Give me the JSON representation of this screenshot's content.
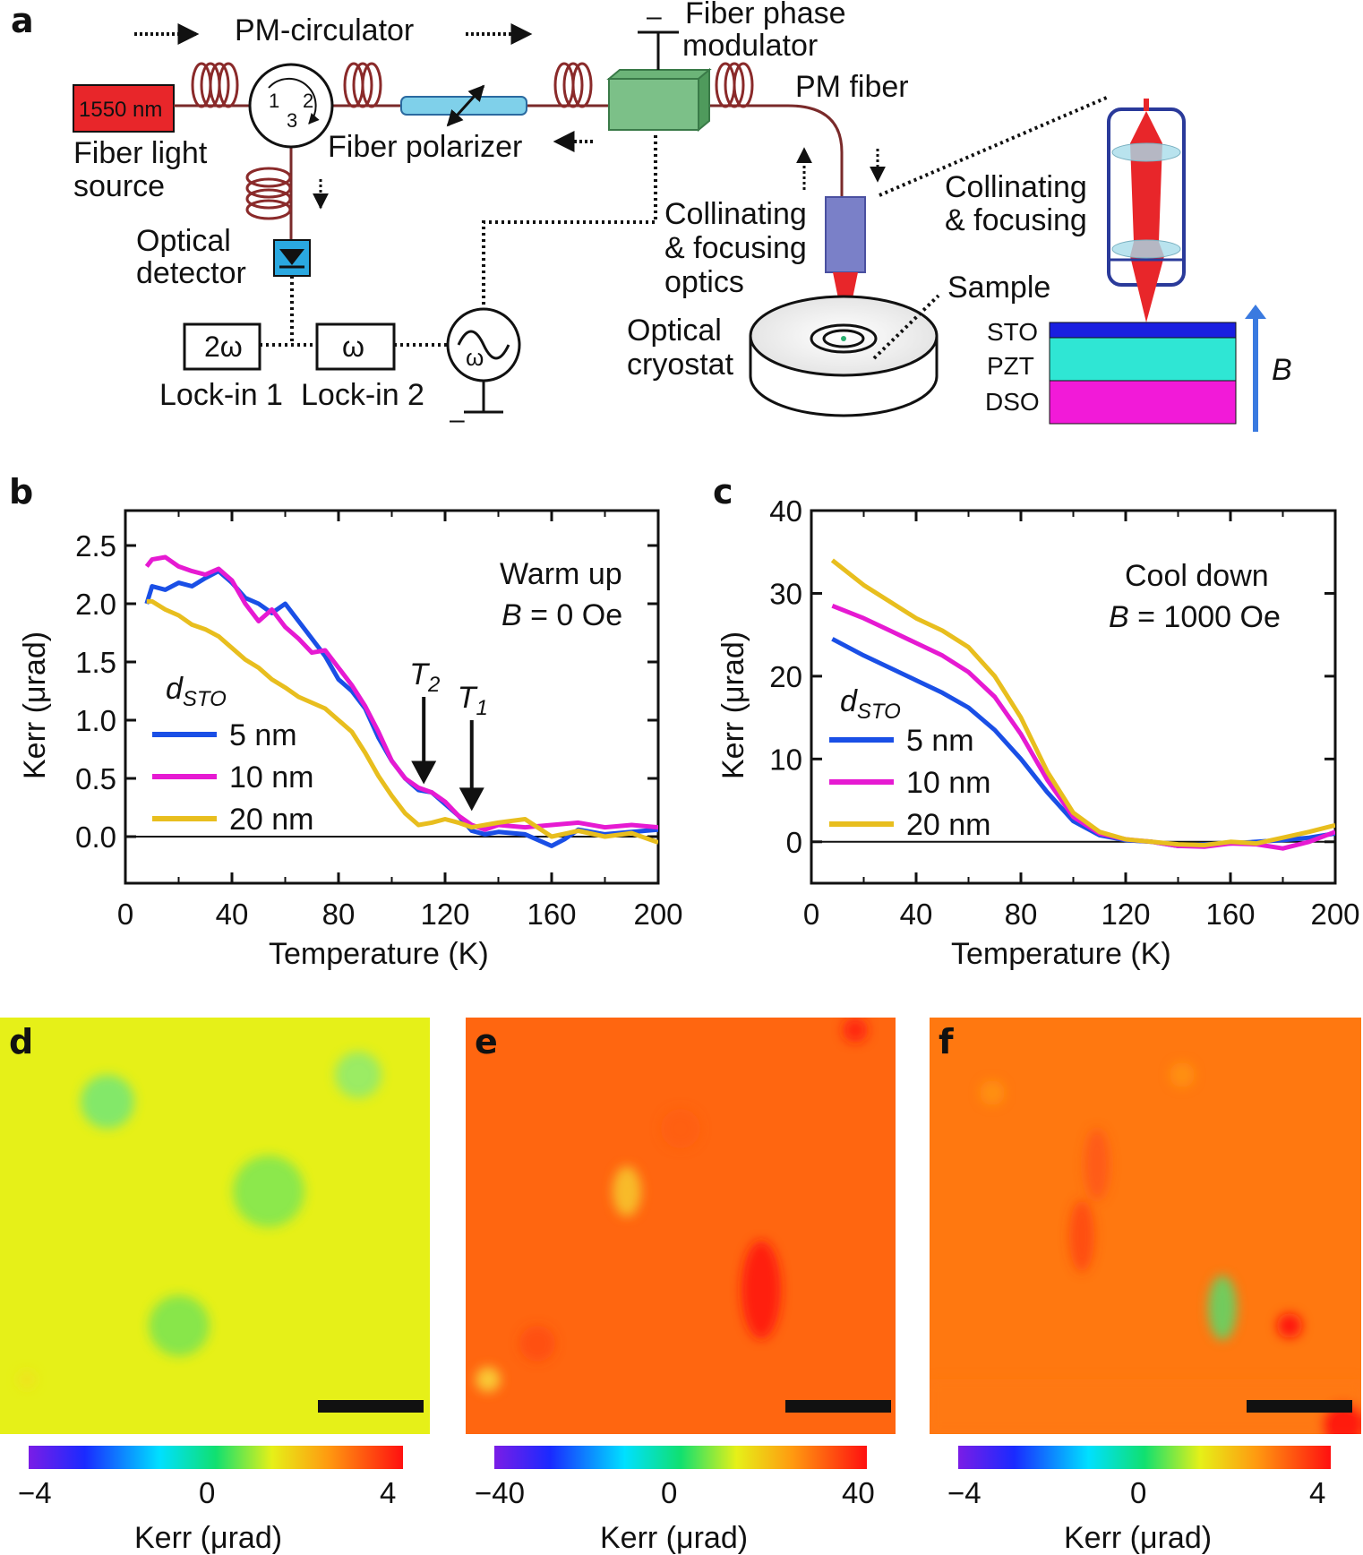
{
  "panel_labels": {
    "a": "a",
    "b": "b",
    "c": "c",
    "d": "d",
    "e": "e",
    "f": "f"
  },
  "setup": {
    "source_box": "1550 nm",
    "source_label_1": "Fiber light",
    "source_label_2": "source",
    "circulator_label": "PM-circulator",
    "port_1": "1",
    "port_2": "2",
    "port_3": "3",
    "polarizer_label": "Fiber polarizer",
    "modulator_label_1": "Fiber phase",
    "modulator_label_2": "modulator",
    "pm_fiber_label": "PM fiber",
    "detector_label_1": "Optical",
    "detector_label_2": "detector",
    "lockin1_box": "2ω",
    "lockin2_box": "ω",
    "lockin1_label": "Lock-in 1",
    "lockin2_label": "Lock-in 2",
    "generator_symbol": "ω",
    "optics_label_1": "Collinating",
    "optics_label_2": "& focusing",
    "optics_label_3": "optics",
    "cryostat_label_1": "Optical",
    "cryostat_label_2": "cryostat",
    "inset_label_1": "Collinating",
    "inset_label_2": "& focusing",
    "sample_label": "Sample",
    "layers": [
      "STO",
      "PZT",
      "DSO"
    ],
    "layer_colors": [
      "#1a1fe0",
      "#2fe6d4",
      "#f21ad8"
    ],
    "field_label": "B",
    "minus_sign": "–"
  },
  "chart_data": [
    {
      "panel": "b",
      "type": "line",
      "title": "",
      "annotation_1": "Warm up",
      "annotation_2_var": "B",
      "annotation_2_rest": " = 0 Oe",
      "xlabel": "Temperature (K)",
      "ylabel": "Kerr (μrad)",
      "xlim": [
        0,
        200
      ],
      "ylim": [
        -0.4,
        2.8
      ],
      "xticks": [
        0,
        40,
        80,
        120,
        160,
        200
      ],
      "yticks": [
        0.0,
        0.5,
        1.0,
        1.5,
        2.0,
        2.5
      ],
      "ytick_labels": [
        "0.0",
        "0.5",
        "1.0",
        "1.5",
        "2.0",
        "2.5"
      ],
      "legend_title_var": "d",
      "legend_title_sub": "STO",
      "arrows": [
        {
          "label": "T",
          "sub": "2",
          "x": 112,
          "y_tip": 0.45,
          "y_tail": 1.2
        },
        {
          "label": "T",
          "sub": "1",
          "x": 130,
          "y_tip": 0.22,
          "y_tail": 1.0
        }
      ],
      "series": [
        {
          "name": "5 nm",
          "color": "#1a4fe6",
          "x": [
            8,
            10,
            15,
            20,
            25,
            30,
            35,
            40,
            45,
            50,
            55,
            60,
            65,
            70,
            75,
            80,
            85,
            90,
            95,
            100,
            105,
            110,
            115,
            120,
            125,
            130,
            135,
            140,
            150,
            160,
            165,
            170,
            180,
            190,
            200
          ],
          "y": [
            2.0,
            2.15,
            2.12,
            2.18,
            2.15,
            2.22,
            2.28,
            2.18,
            2.05,
            2.0,
            1.92,
            2.0,
            1.85,
            1.7,
            1.55,
            1.35,
            1.25,
            1.1,
            0.85,
            0.65,
            0.5,
            0.4,
            0.38,
            0.28,
            0.18,
            0.05,
            0.02,
            0.04,
            0.02,
            -0.08,
            -0.02,
            0.06,
            0.02,
            0.04,
            0.06
          ]
        },
        {
          "name": "10 nm",
          "color": "#e61ad2",
          "x": [
            8,
            10,
            15,
            20,
            25,
            30,
            35,
            40,
            45,
            50,
            55,
            60,
            65,
            70,
            75,
            80,
            85,
            90,
            95,
            100,
            105,
            110,
            115,
            120,
            125,
            130,
            135,
            140,
            150,
            160,
            170,
            180,
            190,
            200
          ],
          "y": [
            2.32,
            2.38,
            2.4,
            2.32,
            2.28,
            2.25,
            2.3,
            2.2,
            2.0,
            1.85,
            1.95,
            1.8,
            1.7,
            1.58,
            1.6,
            1.45,
            1.3,
            1.12,
            0.9,
            0.65,
            0.5,
            0.42,
            0.38,
            0.3,
            0.18,
            0.1,
            0.06,
            0.1,
            0.08,
            0.1,
            0.12,
            0.08,
            0.1,
            0.08
          ]
        },
        {
          "name": "20 nm",
          "color": "#e8be1e",
          "x": [
            8,
            10,
            15,
            20,
            25,
            30,
            35,
            40,
            45,
            50,
            55,
            60,
            65,
            70,
            75,
            80,
            85,
            90,
            95,
            100,
            105,
            110,
            115,
            120,
            125,
            130,
            135,
            140,
            150,
            160,
            170,
            180,
            190,
            200
          ],
          "y": [
            2.02,
            2.02,
            1.95,
            1.9,
            1.82,
            1.78,
            1.72,
            1.62,
            1.52,
            1.45,
            1.35,
            1.28,
            1.2,
            1.15,
            1.1,
            1.0,
            0.9,
            0.72,
            0.52,
            0.35,
            0.2,
            0.1,
            0.12,
            0.15,
            0.12,
            0.08,
            0.1,
            0.12,
            0.15,
            0.0,
            0.05,
            0.0,
            0.03,
            -0.05
          ]
        }
      ]
    },
    {
      "panel": "c",
      "type": "line",
      "title": "",
      "annotation_1": "Cool down",
      "annotation_2_var": "B",
      "annotation_2_rest": " = 1000 Oe",
      "xlabel": "Temperature (K)",
      "ylabel": "Kerr (μrad)",
      "xlim": [
        0,
        200
      ],
      "ylim": [
        -5,
        40
      ],
      "xticks": [
        0,
        40,
        80,
        120,
        160,
        200
      ],
      "yticks": [
        0,
        10,
        20,
        30,
        40
      ],
      "ytick_labels": [
        "0",
        "10",
        "20",
        "30",
        "40"
      ],
      "legend_title_var": "d",
      "legend_title_sub": "STO",
      "series": [
        {
          "name": "5 nm",
          "color": "#1a4fe6",
          "x": [
            8,
            20,
            30,
            40,
            50,
            60,
            70,
            80,
            90,
            100,
            110,
            120,
            130,
            140,
            150,
            160,
            170,
            180,
            190,
            200
          ],
          "y": [
            24.5,
            22.5,
            21.0,
            19.5,
            18.0,
            16.2,
            13.5,
            10.0,
            6.0,
            2.5,
            0.8,
            0.2,
            0.0,
            -0.5,
            -0.3,
            -0.2,
            0.0,
            0.2,
            0.5,
            1.0
          ]
        },
        {
          "name": "10 nm",
          "color": "#e61ad2",
          "x": [
            8,
            20,
            30,
            40,
            50,
            60,
            70,
            80,
            90,
            100,
            110,
            120,
            130,
            140,
            150,
            160,
            170,
            180,
            190,
            200
          ],
          "y": [
            28.5,
            27.0,
            25.5,
            24.0,
            22.5,
            20.5,
            17.5,
            13.0,
            7.5,
            3.0,
            1.0,
            0.3,
            0.0,
            -0.5,
            -0.6,
            -0.2,
            -0.3,
            -0.8,
            0.0,
            1.2
          ]
        },
        {
          "name": "20 nm",
          "color": "#e8be1e",
          "x": [
            8,
            20,
            30,
            40,
            50,
            60,
            70,
            80,
            90,
            100,
            110,
            120,
            130,
            140,
            150,
            160,
            170,
            180,
            190,
            200
          ],
          "y": [
            34.0,
            31.0,
            29.0,
            27.0,
            25.5,
            23.5,
            20.0,
            15.0,
            8.5,
            3.5,
            1.2,
            0.3,
            0.0,
            -0.3,
            -0.4,
            0.0,
            -0.2,
            0.5,
            1.2,
            2.0
          ]
        }
      ]
    },
    {
      "panel": "d",
      "type": "heatmap",
      "colorbar_ticks": [
        "−4",
        "0",
        "4"
      ],
      "colorbar_label": "Kerr (μrad)",
      "clim": [
        -4,
        4
      ],
      "mean_value": 1.2
    },
    {
      "panel": "e",
      "type": "heatmap",
      "colorbar_ticks": [
        "−40",
        "0",
        "40"
      ],
      "colorbar_label": "Kerr (μrad)",
      "clim": [
        -40,
        40
      ],
      "mean_value": 30
    },
    {
      "panel": "f",
      "type": "heatmap",
      "colorbar_ticks": [
        "−4",
        "0",
        "4"
      ],
      "colorbar_label": "Kerr (μrad)",
      "clim": [
        -4,
        4
      ],
      "mean_value": 2.8
    }
  ]
}
